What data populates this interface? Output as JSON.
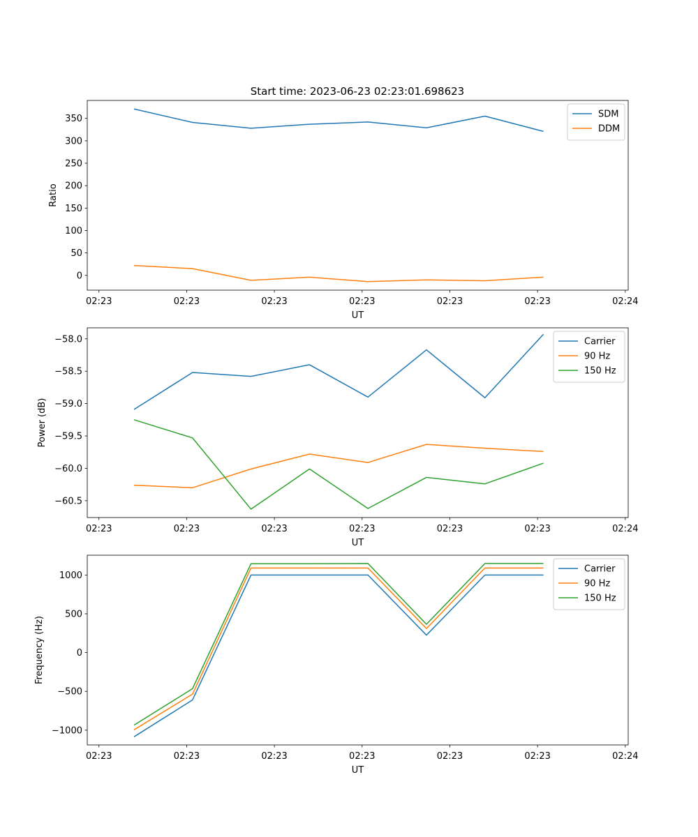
{
  "figure_title": "Start time: 2023-06-23 02:23:01.698623",
  "colors": {
    "blue": "#1f77b4",
    "orange": "#ff7f0e",
    "green": "#2ca02c",
    "axis": "#000000",
    "legend_border": "#cccccc"
  },
  "chart_data": [
    {
      "type": "line",
      "title": "Start time: 2023-06-23 02:23:01.698623",
      "xlabel": "UT",
      "ylabel": "Ratio",
      "x": [
        1.1,
        2.1,
        3.1,
        4.1,
        5.1,
        6.1,
        7.1,
        8.1
      ],
      "xlim": [
        0.3,
        9.55
      ],
      "x_ticks": [
        0.5,
        2.0,
        3.5,
        5.0,
        6.5,
        8.0,
        9.5
      ],
      "x_tick_labels": [
        "02:23",
        "02:23",
        "02:23",
        "02:23",
        "02:23",
        "02:23",
        "02:24"
      ],
      "ylim": [
        -33,
        390
      ],
      "y_ticks": [
        0,
        50,
        100,
        150,
        200,
        250,
        300,
        350
      ],
      "y_tick_labels": [
        "0",
        "50",
        "100",
        "150",
        "200",
        "250",
        "300",
        "350"
      ],
      "grid": false,
      "legend": "top-right",
      "series": [
        {
          "name": "SDM",
          "color": "#1f77b4",
          "values": [
            371,
            341,
            328,
            337,
            342,
            329,
            355,
            321
          ]
        },
        {
          "name": "DDM",
          "color": "#ff7f0e",
          "values": [
            22,
            15,
            -11,
            -4,
            -14,
            -10,
            -12,
            -4
          ]
        }
      ]
    },
    {
      "type": "line",
      "xlabel": "UT",
      "ylabel": "Power (dB)",
      "x": [
        1.1,
        2.1,
        3.1,
        4.1,
        5.1,
        6.1,
        7.1,
        8.1
      ],
      "xlim": [
        0.3,
        9.55
      ],
      "x_ticks": [
        0.5,
        2.0,
        3.5,
        5.0,
        6.5,
        8.0,
        9.5
      ],
      "x_tick_labels": [
        "02:23",
        "02:23",
        "02:23",
        "02:23",
        "02:23",
        "02:23",
        "02:24"
      ],
      "ylim": [
        -60.76,
        -57.83
      ],
      "y_ticks": [
        -60.5,
        -60.0,
        -59.5,
        -59.0,
        -58.5,
        -58.0
      ],
      "y_tick_labels": [
        "−60.5",
        "−60.0",
        "−59.5",
        "−59.0",
        "−58.5",
        "−58.0"
      ],
      "grid": false,
      "legend": "top-right",
      "series": [
        {
          "name": "Carrier",
          "color": "#1f77b4",
          "values": [
            -59.09,
            -58.52,
            -58.58,
            -58.4,
            -58.9,
            -58.17,
            -58.91,
            -57.93
          ]
        },
        {
          "name": "90 Hz",
          "color": "#ff7f0e",
          "values": [
            -60.26,
            -60.3,
            -60.01,
            -59.78,
            -59.91,
            -59.63,
            -59.69,
            -59.74
          ]
        },
        {
          "name": "150 Hz",
          "color": "#2ca02c",
          "values": [
            -59.25,
            -59.53,
            -60.63,
            -60.01,
            -60.62,
            -60.14,
            -60.24,
            -59.92
          ]
        }
      ]
    },
    {
      "type": "line",
      "xlabel": "UT",
      "ylabel": "Frequency (Hz)",
      "x": [
        1.1,
        2.1,
        3.1,
        4.1,
        5.1,
        6.1,
        7.1,
        8.1
      ],
      "xlim": [
        0.3,
        9.55
      ],
      "x_ticks": [
        0.5,
        2.0,
        3.5,
        5.0,
        6.5,
        8.0,
        9.5
      ],
      "x_tick_labels": [
        "02:23",
        "02:23",
        "02:23",
        "02:23",
        "02:23",
        "02:23",
        "02:24"
      ],
      "ylim": [
        -1190,
        1255
      ],
      "y_ticks": [
        -1000,
        -500,
        0,
        500,
        1000
      ],
      "y_tick_labels": [
        "−1000",
        "−500",
        "0",
        "500",
        "1000"
      ],
      "grid": false,
      "legend": "top-right",
      "series": [
        {
          "name": "Carrier",
          "color": "#1f77b4",
          "values": [
            -1085,
            -610,
            1000,
            1000,
            1000,
            225,
            1000,
            1000
          ]
        },
        {
          "name": "90 Hz",
          "color": "#ff7f0e",
          "values": [
            -995,
            -535,
            1090,
            1090,
            1090,
            310,
            1090,
            1090
          ]
        },
        {
          "name": "150 Hz",
          "color": "#2ca02c",
          "values": [
            -935,
            -465,
            1145,
            1145,
            1148,
            365,
            1148,
            1148
          ]
        }
      ]
    }
  ]
}
